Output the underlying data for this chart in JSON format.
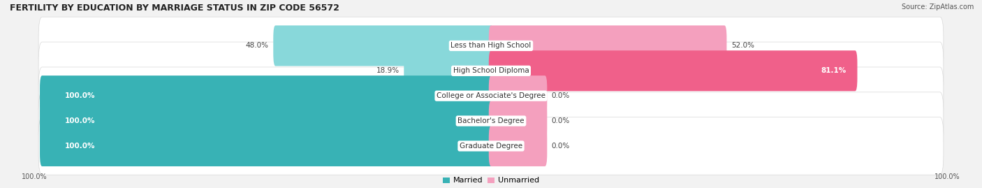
{
  "title": "FERTILITY BY EDUCATION BY MARRIAGE STATUS IN ZIP CODE 56572",
  "source": "Source: ZipAtlas.com",
  "categories": [
    "Less than High School",
    "High School Diploma",
    "College or Associate's Degree",
    "Bachelor's Degree",
    "Graduate Degree"
  ],
  "married": [
    48.0,
    18.9,
    100.0,
    100.0,
    100.0
  ],
  "unmarried": [
    52.0,
    81.1,
    0.0,
    0.0,
    0.0
  ],
  "married_color_strong": "#38b2b5",
  "married_color_light": "#88d8da",
  "unmarried_color_strong": "#f0608a",
  "unmarried_color_light": "#f4a0be",
  "background_color": "#f2f2f2",
  "row_bg_color": "#ffffff",
  "row_border_color": "#d8d8d8",
  "title_fontsize": 9,
  "source_fontsize": 7,
  "label_fontsize": 7.5,
  "pct_fontsize": 7.5,
  "axis_label_fontsize": 7,
  "legend_fontsize": 8,
  "unmarried_stub_pct": 12
}
